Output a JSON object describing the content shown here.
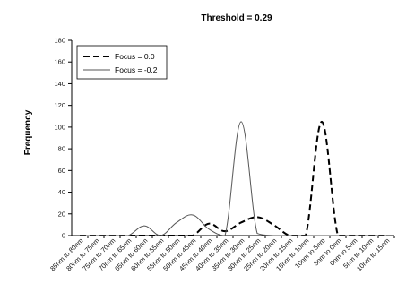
{
  "chart_data": {
    "type": "line",
    "title": "Threshold = 0.29",
    "xlabel": "",
    "ylabel": "Frequency",
    "ylim": [
      0,
      180
    ],
    "yticks": [
      0,
      20,
      40,
      60,
      80,
      100,
      120,
      140,
      160,
      180
    ],
    "grid": false,
    "legend_position": "top-left",
    "categories": [
      "85nm to 80nm",
      "80nm to 75nm",
      "75nm to 70nm",
      "70nm to 65nm",
      "65nm to 60nm",
      "60nm to 55nm",
      "55nm to 50nm",
      "50nm to 45nm",
      "45nm to 40nm",
      "40nm to 35nm",
      "35nm to 30nm",
      "30nm to 25nm",
      "25nm to 20nm",
      "20nm to 15nm",
      "15nm to 10nm",
      "10nm to 5nm",
      "5nm to 0nm",
      "0nm to 5nm",
      "5nm to 10nm",
      "10nm to 15nm"
    ],
    "series": [
      {
        "name": "Focus = 0.0",
        "style": "dashed",
        "color": "#000000",
        "values": [
          0,
          0,
          0,
          0,
          0,
          0,
          0,
          0,
          11,
          4,
          12,
          17,
          10,
          0,
          0,
          105,
          0,
          0,
          0,
          0
        ]
      },
      {
        "name": "Focus = -0.2",
        "style": "solid",
        "color": "#555555",
        "values": [
          0,
          0,
          0,
          0,
          9,
          0,
          12,
          19,
          6,
          0,
          105,
          2,
          0,
          0,
          0,
          0,
          0,
          0,
          0,
          0
        ]
      }
    ]
  }
}
